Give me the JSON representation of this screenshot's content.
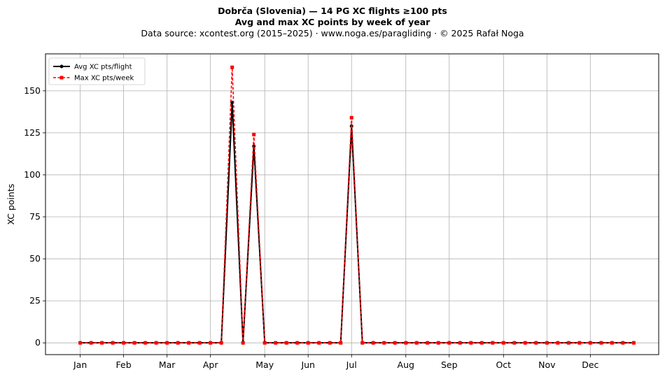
{
  "chart_data": {
    "type": "line",
    "title": "Dobrča (Slovenia)  —  14 PG XC flights ≥100 pts",
    "subtitle": "Avg and max XC points by week of year",
    "source": "Data source: xcontest.org (2015–2025)  ·  www.noga.es/paragliding  ·  © 2025 Rafał Noga",
    "xlabel": "",
    "ylabel": "XC points",
    "ylim": [
      -7,
      172
    ],
    "xlim": [
      -2.2,
      54.3
    ],
    "grid": true,
    "legend_position": "top-left",
    "yticks": [
      0,
      25,
      50,
      75,
      100,
      125,
      150
    ],
    "month_ticks": [
      {
        "label": "Jan",
        "week": 1
      },
      {
        "label": "Feb",
        "week": 5
      },
      {
        "label": "Mar",
        "week": 9
      },
      {
        "label": "Apr",
        "week": 13
      },
      {
        "label": "May",
        "week": 18
      },
      {
        "label": "Jun",
        "week": 22
      },
      {
        "label": "Jul",
        "week": 26
      },
      {
        "label": "Aug",
        "week": 31
      },
      {
        "label": "Sep",
        "week": 35
      },
      {
        "label": "Oct",
        "week": 40
      },
      {
        "label": "Nov",
        "week": 44
      },
      {
        "label": "Dec",
        "week": 48
      }
    ],
    "x": [
      1,
      2,
      3,
      4,
      5,
      6,
      7,
      8,
      9,
      10,
      11,
      12,
      13,
      14,
      15,
      16,
      17,
      18,
      19,
      20,
      21,
      22,
      23,
      24,
      25,
      26,
      27,
      28,
      29,
      30,
      31,
      32,
      33,
      34,
      35,
      36,
      37,
      38,
      39,
      40,
      41,
      42,
      43,
      44,
      45,
      46,
      47,
      48,
      49,
      50,
      51,
      52
    ],
    "series": [
      {
        "name": "Avg XC pts/flight",
        "color": "#000000",
        "style": "solid",
        "marker": "circle",
        "values": [
          0,
          0,
          0,
          0,
          0,
          0,
          0,
          0,
          0,
          0,
          0,
          0,
          0,
          0,
          143,
          0,
          117,
          0,
          0,
          0,
          0,
          0,
          0,
          0,
          0,
          129,
          0,
          0,
          0,
          0,
          0,
          0,
          0,
          0,
          0,
          0,
          0,
          0,
          0,
          0,
          0,
          0,
          0,
          0,
          0,
          0,
          0,
          0,
          0,
          0,
          0,
          0
        ]
      },
      {
        "name": "Max XC pts/week",
        "color": "#ff0000",
        "style": "dashed",
        "marker": "square",
        "values": [
          0,
          0,
          0,
          0,
          0,
          0,
          0,
          0,
          0,
          0,
          0,
          0,
          0,
          0,
          164,
          0,
          124,
          0,
          0,
          0,
          0,
          0,
          0,
          0,
          0,
          134,
          0,
          0,
          0,
          0,
          0,
          0,
          0,
          0,
          0,
          0,
          0,
          0,
          0,
          0,
          0,
          0,
          0,
          0,
          0,
          0,
          0,
          0,
          0,
          0,
          0,
          0
        ]
      }
    ]
  }
}
